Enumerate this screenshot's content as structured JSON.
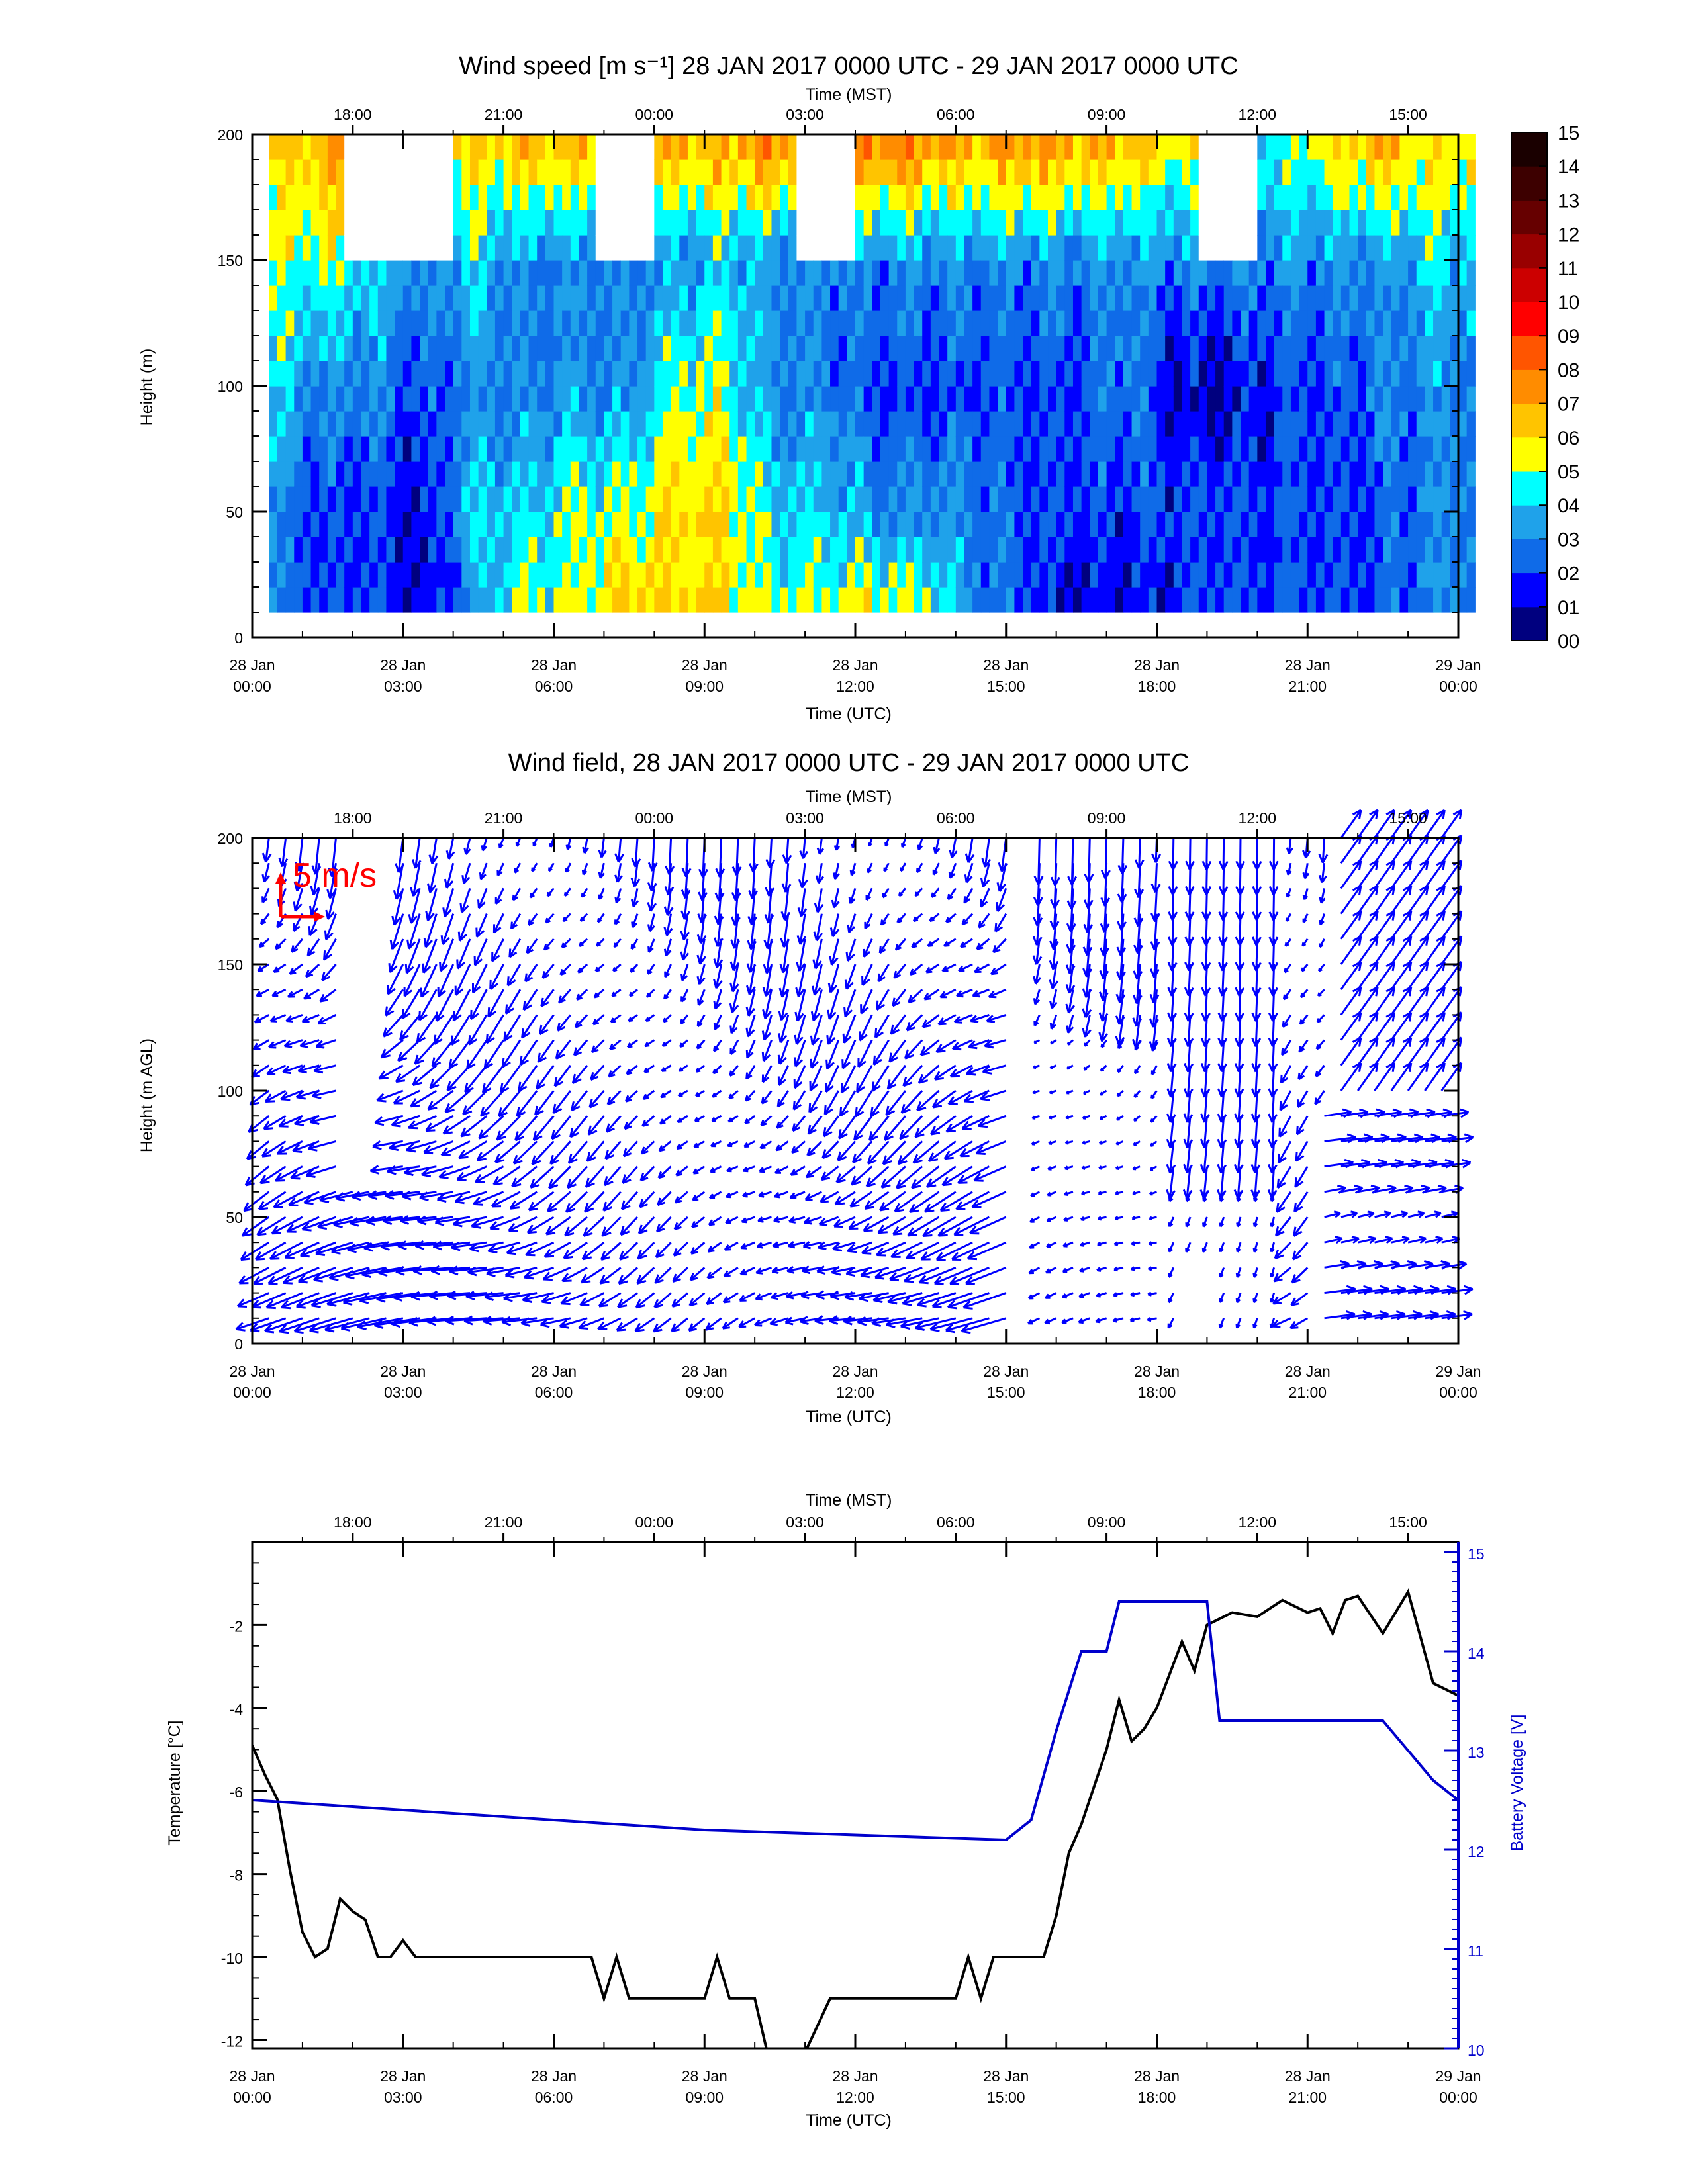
{
  "colors": {
    "wind_scale": [
      "#00007f",
      "#0000ff",
      "#0f6be8",
      "#1fa2ea",
      "#00ffff",
      "#ffff00",
      "#ffc400",
      "#ff8c00",
      "#ff5500",
      "#ff0000",
      "#cc0000",
      "#990000",
      "#660000",
      "#3d0000",
      "#1a0000"
    ],
    "vectors": "#0000ff",
    "temperature_line": "#000000",
    "voltage_line": "#0000cc",
    "scale_arrow": "#ff0000",
    "missing": "#ffffff"
  },
  "chart_data": [
    {
      "type": "heatmap",
      "title": "Wind speed [m s⁻¹] 28 JAN 2017 0000 UTC - 29 JAN 2017 0000 UTC",
      "top_axis_label": "Time (MST)",
      "top_ticks": [
        "18:00",
        "21:00",
        "00:00",
        "03:00",
        "06:00",
        "09:00",
        "12:00",
        "15:00"
      ],
      "xlabel": "Time (UTC)",
      "x_ticks": [
        [
          "28 Jan",
          "00:00"
        ],
        [
          "28 Jan",
          "03:00"
        ],
        [
          "28 Jan",
          "06:00"
        ],
        [
          "28 Jan",
          "09:00"
        ],
        [
          "28 Jan",
          "12:00"
        ],
        [
          "28 Jan",
          "15:00"
        ],
        [
          "28 Jan",
          "18:00"
        ],
        [
          "28 Jan",
          "21:00"
        ],
        [
          "29 Jan",
          "00:00"
        ]
      ],
      "xlim": [
        "2017-01-28 00:00",
        "2017-01-29 00:00"
      ],
      "ylabel": "Height (m)",
      "ylim": [
        0,
        200
      ],
      "y_ticks": [
        "0",
        "50",
        "100",
        "150",
        "200"
      ],
      "colorbar_labels": [
        "00",
        "01",
        "02",
        "03",
        "04",
        "05",
        "06",
        "07",
        "08",
        "09",
        "10",
        "11",
        "12",
        "13",
        "14",
        "15"
      ],
      "height_levels_m": [
        10,
        200
      ],
      "z_units": "m s⁻¹",
      "description_of_values": "wind speed by height and time; approximate column profiles (UTC hour: speeds at 10/50/100/150/200 m)",
      "profiles": [
        {
          "time": "00:00",
          "speeds": [
            3,
            3,
            4,
            5,
            6
          ]
        },
        {
          "time": "01:00",
          "speeds": [
            2,
            2,
            3,
            5,
            7
          ]
        },
        {
          "time": "02:00",
          "speeds": [
            2,
            2,
            3,
            4,
            null
          ]
        },
        {
          "time": "03:00",
          "speeds": [
            1,
            1,
            2,
            3,
            null
          ]
        },
        {
          "time": "04:00",
          "speeds": [
            3,
            4,
            3,
            4,
            6
          ]
        },
        {
          "time": "05:00",
          "speeds": [
            5,
            4,
            3,
            3,
            7
          ]
        },
        {
          "time": "06:00",
          "speeds": [
            5,
            5,
            3,
            3,
            7
          ]
        },
        {
          "time": "07:00",
          "speeds": [
            6,
            5,
            3,
            3,
            null
          ]
        },
        {
          "time": "08:00",
          "speeds": [
            6,
            6,
            5,
            3,
            7
          ]
        },
        {
          "time": "09:00",
          "speeds": [
            6,
            6,
            5,
            4,
            7
          ]
        },
        {
          "time": "10:00",
          "speeds": [
            5,
            4,
            3,
            3,
            8
          ]
        },
        {
          "time": "11:00",
          "speeds": [
            5,
            4,
            3,
            3,
            null
          ]
        },
        {
          "time": "12:00",
          "speeds": [
            6,
            3,
            2,
            3,
            8
          ]
        },
        {
          "time": "13:00",
          "speeds": [
            5,
            3,
            2,
            3,
            8
          ]
        },
        {
          "time": "14:00",
          "speeds": [
            3,
            3,
            2,
            3,
            7
          ]
        },
        {
          "time": "15:00",
          "speeds": [
            2,
            2,
            2,
            3,
            8
          ]
        },
        {
          "time": "16:00",
          "speeds": [
            1,
            2,
            2,
            3,
            7
          ]
        },
        {
          "time": "17:00",
          "speeds": [
            1,
            2,
            3,
            3,
            7
          ]
        },
        {
          "time": "18:00",
          "speeds": [
            2,
            2,
            1,
            3,
            6
          ]
        },
        {
          "time": "19:00",
          "speeds": [
            2,
            2,
            1,
            3,
            null
          ]
        },
        {
          "time": "20:00",
          "speeds": [
            2,
            2,
            2,
            3,
            5
          ]
        },
        {
          "time": "21:00",
          "speeds": [
            2,
            2,
            2,
            3,
            6
          ]
        },
        {
          "time": "22:00",
          "speeds": [
            2,
            2,
            3,
            3,
            7
          ]
        },
        {
          "time": "23:00",
          "speeds": [
            3,
            3,
            3,
            4,
            6
          ]
        },
        {
          "time": "24:00",
          "speeds": [
            3,
            3,
            3,
            4,
            6
          ]
        }
      ]
    },
    {
      "type": "scatter",
      "subtype": "vector_field",
      "title": "Wind field, 28 JAN 2017 0000 UTC - 29 JAN 2017 0000 UTC",
      "top_axis_label": "Time (MST)",
      "top_ticks": [
        "18:00",
        "21:00",
        "00:00",
        "03:00",
        "06:00",
        "09:00",
        "12:00",
        "15:00"
      ],
      "xlabel": "Time (UTC)",
      "x_ticks": [
        [
          "28 Jan",
          "00:00"
        ],
        [
          "28 Jan",
          "03:00"
        ],
        [
          "28 Jan",
          "06:00"
        ],
        [
          "28 Jan",
          "09:00"
        ],
        [
          "28 Jan",
          "12:00"
        ],
        [
          "28 Jan",
          "15:00"
        ],
        [
          "28 Jan",
          "18:00"
        ],
        [
          "28 Jan",
          "21:00"
        ],
        [
          "29 Jan",
          "00:00"
        ]
      ],
      "xlim": [
        "2017-01-28 00:00",
        "2017-01-29 00:00"
      ],
      "ylabel": "Height (m AGL)",
      "ylim": [
        0,
        200
      ],
      "y_ticks": [
        "0",
        "50",
        "100",
        "150",
        "200"
      ],
      "scale_label": "5 m/s",
      "scale_m_s": 5,
      "height_levels_m": [
        10,
        20,
        30,
        40,
        50,
        60,
        70,
        80,
        90,
        100,
        110,
        120,
        130,
        140,
        150,
        160,
        170,
        180,
        190,
        200
      ],
      "profile_step_minutes": 20,
      "description_of_values": "u/v wind vectors; low levels mostly westward, upper levels mostly southward (pointing down); weak/missing periods 15:00-18:00 and 18:00-20:00"
    },
    {
      "type": "line",
      "title": "",
      "top_axis_label": "Time (MST)",
      "top_ticks": [
        "18:00",
        "21:00",
        "00:00",
        "03:00",
        "06:00",
        "09:00",
        "12:00",
        "15:00"
      ],
      "xlabel": "Time (UTC)",
      "x_ticks": [
        [
          "28 Jan",
          "00:00"
        ],
        [
          "28 Jan",
          "03:00"
        ],
        [
          "28 Jan",
          "06:00"
        ],
        [
          "28 Jan",
          "09:00"
        ],
        [
          "28 Jan",
          "12:00"
        ],
        [
          "28 Jan",
          "15:00"
        ],
        [
          "28 Jan",
          "18:00"
        ],
        [
          "28 Jan",
          "21:00"
        ],
        [
          "29 Jan",
          "00:00"
        ]
      ],
      "xlim": [
        "2017-01-28 00:00",
        "2017-01-29 00:00"
      ],
      "ylabel": "Temperature [°C]",
      "ylim": [
        -12.2,
        0
      ],
      "y_ticks": [
        "-12",
        "-10",
        "-8",
        "-6",
        "-4",
        "-2"
      ],
      "y2label": "Battery Voltage [V]",
      "y2lim": [
        10,
        15.1
      ],
      "y2_ticks": [
        "10",
        "11",
        "12",
        "13",
        "14",
        "15"
      ],
      "series": [
        {
          "axis": "left",
          "x": [
            "00:00",
            "00:15",
            "00:30",
            "00:45",
            "01:00",
            "01:15",
            "01:30",
            "01:45",
            "02:00",
            "02:15",
            "02:30",
            "02:45",
            "03:00",
            "03:15",
            "03:30",
            "03:45",
            "04:00",
            "05:00",
            "06:00",
            "06:45",
            "07:00",
            "07:15",
            "07:30",
            "08:00",
            "09:00",
            "09:15",
            "09:30",
            "10:00",
            "10:15",
            "10:30",
            "11:00",
            "11:30",
            "11:45",
            "12:00",
            "13:00",
            "14:00",
            "14:15",
            "14:30",
            "14:45",
            "15:00",
            "15:45",
            "16:00",
            "16:15",
            "16:30",
            "17:00",
            "17:15",
            "17:30",
            "17:45",
            "18:00",
            "18:30",
            "18:45",
            "19:00",
            "19:30",
            "20:00",
            "20:30",
            "21:00",
            "21:15",
            "21:30",
            "21:45",
            "22:00",
            "22:30",
            "22:45",
            "23:00",
            "23:30",
            "24:00"
          ],
          "values": [
            -4.9,
            -5.6,
            -6.2,
            -7.9,
            -9.4,
            -10.0,
            -9.8,
            -8.6,
            -8.9,
            -9.1,
            -10.0,
            -10.0,
            -9.6,
            -10.0,
            -10.0,
            -10.0,
            -10.0,
            -10.0,
            -10.0,
            -10.0,
            -11.0,
            -10.0,
            -11.0,
            -11.0,
            -11.0,
            -10.0,
            -11.0,
            -11.0,
            -12.3,
            -12.3,
            -12.3,
            -11.0,
            -11.0,
            -11.0,
            -11.0,
            -11.0,
            -10.0,
            -11.0,
            -10.0,
            -10.0,
            -10.0,
            -9.0,
            -7.5,
            -6.8,
            -5.0,
            -3.8,
            -4.8,
            -4.5,
            -4.0,
            -2.4,
            -3.1,
            -2.0,
            -1.7,
            -1.8,
            -1.4,
            -1.7,
            -1.6,
            -2.2,
            -1.4,
            -1.3,
            -2.2,
            -1.7,
            -1.2,
            -3.4,
            -3.7
          ]
        },
        {
          "axis": "right",
          "x": [
            "00:00",
            "03:00",
            "06:00",
            "09:00",
            "12:00",
            "15:00",
            "15:30",
            "16:00",
            "16:15",
            "16:30",
            "17:00",
            "17:15",
            "17:30",
            "17:45",
            "18:00",
            "19:00",
            "19:15",
            "19:30",
            "20:00",
            "21:00",
            "22:00",
            "22:30",
            "23:00",
            "23:30",
            "24:00"
          ],
          "values": [
            12.5,
            12.4,
            12.3,
            12.2,
            12.15,
            12.1,
            12.3,
            13.2,
            13.6,
            14.0,
            14.0,
            14.5,
            14.5,
            14.5,
            14.5,
            14.5,
            13.3,
            13.3,
            13.3,
            13.3,
            13.3,
            13.3,
            13.0,
            12.7,
            12.5
          ]
        }
      ]
    }
  ]
}
